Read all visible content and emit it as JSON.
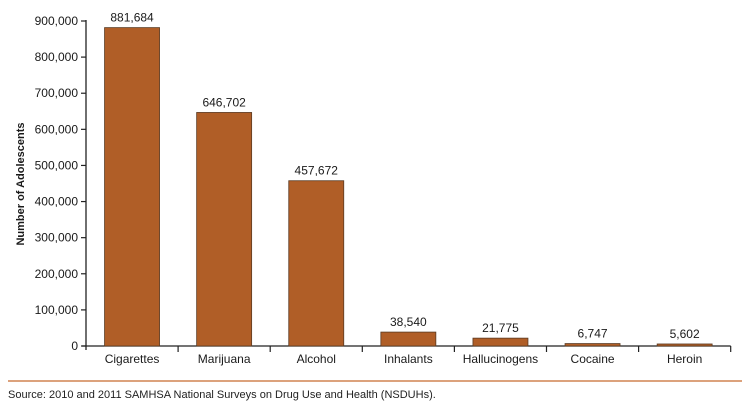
{
  "chart_data": {
    "type": "bar",
    "categories": [
      "Cigarettes",
      "Marijuana",
      "Alcohol",
      "Inhalants",
      "Hallucinogens",
      "Cocaine",
      "Heroin"
    ],
    "values": [
      881684,
      646702,
      457672,
      38540,
      21775,
      6747,
      5602
    ],
    "data_labels": [
      "881,684",
      "646,702",
      "457,672",
      "38,540",
      "21,775",
      "6,747",
      "5,602"
    ],
    "title": "",
    "xlabel": "",
    "ylabel": "Number of Adolescents",
    "ylim": [
      0,
      900000
    ],
    "yticks": [
      0,
      100000,
      200000,
      300000,
      400000,
      500000,
      600000,
      700000,
      800000,
      900000
    ],
    "ytick_labels": [
      "0",
      "100,000",
      "200,000",
      "300,000",
      "400,000",
      "500,000",
      "600,000",
      "700,000",
      "800,000",
      "900,000"
    ],
    "grid": false,
    "bar_color": "#b05e27"
  },
  "source": "Source: 2010 and 2011 SAMHSA National Surveys on Drug Use and Health (NSDUHs)."
}
